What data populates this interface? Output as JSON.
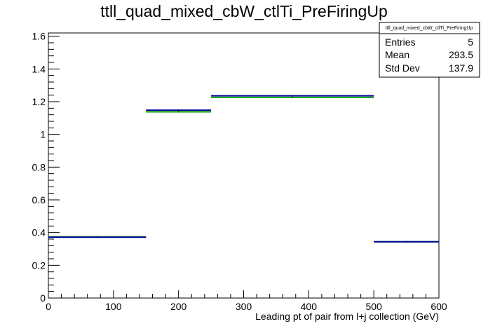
{
  "chart_data": {
    "type": "histogram",
    "title": "ttll_quad_mixed_cbW_ctlTi_PreFiringUp",
    "xlabel": "Leading pt of pair from l+j collection (GeV)",
    "ylabel": "",
    "xlim": [
      0,
      600
    ],
    "ylim": [
      0,
      1.62
    ],
    "x_ticks": [
      0,
      100,
      200,
      300,
      400,
      500,
      600
    ],
    "y_ticks": [
      0,
      0.2,
      0.4,
      0.6,
      0.8,
      1,
      1.2,
      1.4,
      1.6
    ],
    "x_tick_labels": [
      "0",
      "100",
      "200",
      "300",
      "400",
      "500",
      "600"
    ],
    "y_tick_labels": [
      "0",
      "0.2",
      "0.4",
      "0.6",
      "0.8",
      "1",
      "1.2",
      "1.4",
      "1.6"
    ],
    "bin_edges": [
      0,
      150,
      250,
      500,
      600
    ],
    "series": [
      {
        "color": "#000099",
        "values": [
          0.372,
          1.148,
          1.236,
          0.344
        ]
      },
      {
        "color": "#00aa00",
        "values": [
          0.374,
          1.138,
          1.226,
          0.344
        ]
      }
    ],
    "grid": false,
    "legend": "none",
    "stats_box": {
      "title": "ttll_quad_mixed_cbW_ctlTi_PreFiringUp",
      "rows": [
        {
          "label": "Entries",
          "value": "5"
        },
        {
          "label": "Mean",
          "value": "293.5"
        },
        {
          "label": "Std Dev",
          "value": "137.9"
        }
      ]
    }
  }
}
